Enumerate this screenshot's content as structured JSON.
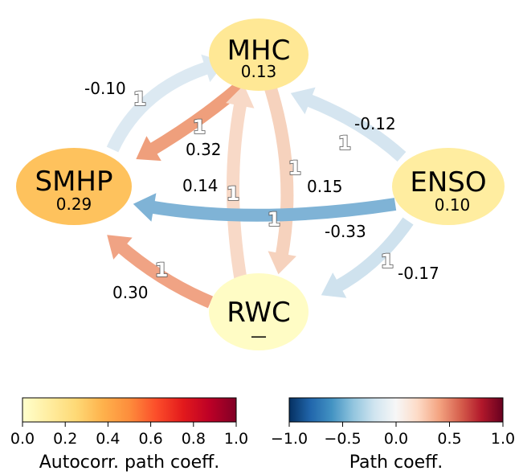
{
  "nodes": [
    {
      "id": "MHC",
      "label": "MHC",
      "value": "0.13",
      "autocorr": 0.13
    },
    {
      "id": "SMHP",
      "label": "SMHP",
      "value": "0.29",
      "autocorr": 0.29
    },
    {
      "id": "ENSO",
      "label": "ENSO",
      "value": "0.10",
      "autocorr": 0.1
    },
    {
      "id": "RWC",
      "label": "RWC",
      "value": "—",
      "autocorr": 0.0
    }
  ],
  "edges": [
    {
      "from": "SMHP",
      "to": "MHC",
      "coef": "-0.10",
      "lag": "1",
      "color": "#dce9f2"
    },
    {
      "from": "MHC",
      "to": "SMHP",
      "coef": "0.32",
      "lag": "1",
      "color": "#ef9f7c"
    },
    {
      "from": "RWC",
      "to": "MHC",
      "coef": "0.14",
      "lag": "1",
      "color": "#f8d9c7"
    },
    {
      "from": "MHC",
      "to": "RWC",
      "coef": "0.15",
      "lag": "1",
      "color": "#f6d2bd"
    },
    {
      "from": "ENSO",
      "to": "MHC",
      "coef": "-0.12",
      "lag": "1",
      "color": "#d5e5f0"
    },
    {
      "from": "ENSO",
      "to": "SMHP",
      "coef": "-0.33",
      "lag": "1",
      "color": "#7fb3d6"
    },
    {
      "from": "ENSO",
      "to": "RWC",
      "coef": "-0.17",
      "lag": "1",
      "color": "#cfe2ee"
    },
    {
      "from": "RWC",
      "to": "SMHP",
      "coef": "0.30",
      "lag": "1",
      "color": "#f0a384"
    }
  ],
  "colorbars": [
    {
      "title": "Autocorr. path coeff.",
      "ticks": [
        "0.0",
        "0.2",
        "0.4",
        "0.6",
        "0.8",
        "1.0"
      ],
      "colors": [
        "#ffffcc",
        "#ffeda0",
        "#fed976",
        "#feb24c",
        "#fd8d3c",
        "#fc4e2a",
        "#e31a1c",
        "#bd0026",
        "#800026"
      ]
    },
    {
      "title": "Path coeff.",
      "ticks": [
        "−1.0",
        "−0.5",
        "0.0",
        "0.5",
        "1.0"
      ],
      "colors": [
        "#053061",
        "#2166ac",
        "#4393c3",
        "#92c5de",
        "#d1e5f0",
        "#f7f7f7",
        "#fddbc7",
        "#f4a582",
        "#d6604d",
        "#b2182b",
        "#67001f"
      ]
    }
  ]
}
